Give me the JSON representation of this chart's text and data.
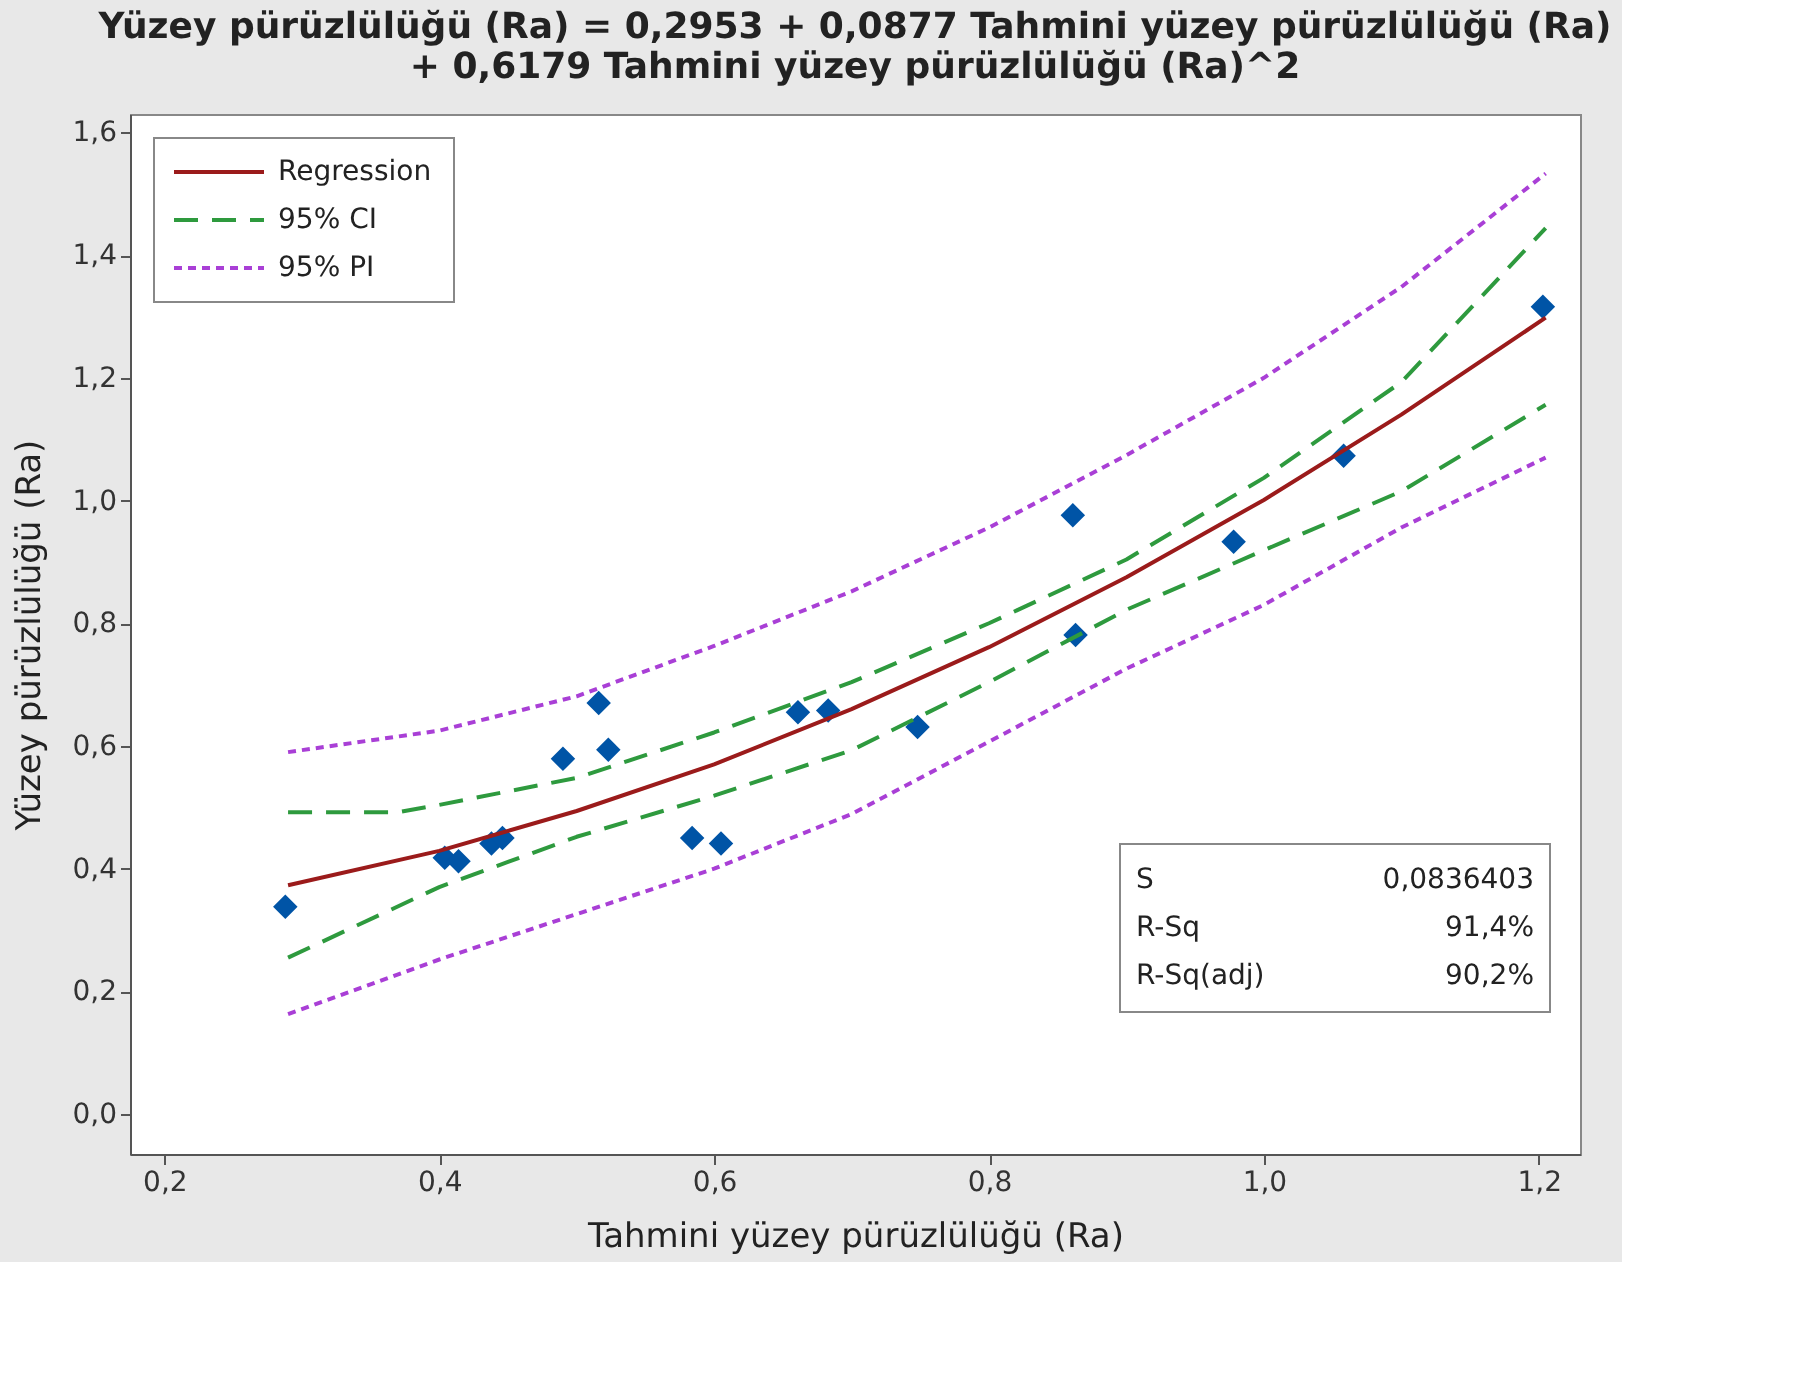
{
  "chart_data": {
    "type": "scatter",
    "title": "Yüzey pürüzlülüğü (Ra) = 0,2953 + 0,0877 Tahmini yüzey pürüzlülüğü (Ra)\n + 0,6179 Tahmini yüzey pürüzlülüğü (Ra)^2",
    "xlabel": "Tahmini yüzey pürüzlülüğü (Ra)",
    "ylabel": "Yüzey pürüzlülüğü (Ra)",
    "xlim": [
      0.175,
      1.23
    ],
    "ylim": [
      -0.065,
      1.63
    ],
    "xticks": [
      {
        "value": 0.2,
        "label": "0,2"
      },
      {
        "value": 0.4,
        "label": "0,4"
      },
      {
        "value": 0.6,
        "label": "0,6"
      },
      {
        "value": 0.8,
        "label": "0,8"
      },
      {
        "value": 1.0,
        "label": "1,0"
      },
      {
        "value": 1.2,
        "label": "1,2"
      }
    ],
    "yticks": [
      {
        "value": 0.0,
        "label": "0,0"
      },
      {
        "value": 0.2,
        "label": "0,2"
      },
      {
        "value": 0.4,
        "label": "0,4"
      },
      {
        "value": 0.6,
        "label": "0,6"
      },
      {
        "value": 0.8,
        "label": "0,8"
      },
      {
        "value": 1.0,
        "label": "1,0"
      },
      {
        "value": 1.2,
        "label": "1,2"
      },
      {
        "value": 1.4,
        "label": "1,4"
      },
      {
        "value": 1.6,
        "label": "1,6"
      }
    ],
    "grid": false,
    "legend": "top left",
    "annotations": [
      "S",
      "0,0836403",
      "R-Sq",
      "91,4%",
      "R-Sq(adj)",
      "90,2%"
    ],
    "series": [
      {
        "marker": "diamond",
        "color": "#0054a6",
        "x": [
          0.288,
          0.404,
          0.414,
          0.438,
          0.446,
          0.49,
          0.516,
          0.523,
          0.584,
          0.605,
          0.661,
          0.683,
          0.748,
          0.861,
          0.863,
          0.978,
          1.058,
          1.203
        ],
        "values": [
          0.338,
          0.418,
          0.412,
          0.441,
          0.45,
          0.579,
          0.67,
          0.594,
          0.45,
          0.441,
          0.655,
          0.658,
          0.631,
          0.976,
          0.781,
          0.933,
          1.073,
          1.316
        ]
      },
      {
        "type": "line",
        "name": "Regression",
        "color": "#9b1b1b",
        "line_style": "solid",
        "x": [
          0.29,
          0.4,
          0.5,
          0.6,
          0.7,
          0.8,
          0.9,
          1.0,
          1.1,
          1.205
        ],
        "values": [
          0.373,
          0.429,
          0.494,
          0.57,
          0.66,
          0.761,
          0.875,
          1.001,
          1.14,
          1.298
        ]
      },
      {
        "type": "line",
        "name": "95% CI",
        "color": "#2e9a3e",
        "line_style": "dashed",
        "x": [
          0.29,
          0.37,
          0.4,
          0.5,
          0.6,
          0.7,
          0.8,
          0.9,
          1.0,
          1.1,
          1.205
        ],
        "values": [
          0.492,
          0.492,
          0.504,
          0.548,
          0.622,
          0.704,
          0.8,
          0.904,
          1.037,
          1.193,
          1.444
        ]
      },
      {
        "type": "line",
        "color": "#2e9a3e",
        "line_style": "dashed",
        "x": [
          0.29,
          0.4,
          0.5,
          0.6,
          0.7,
          0.8,
          0.9,
          1.0,
          1.1,
          1.205
        ],
        "values": [
          0.255,
          0.37,
          0.452,
          0.519,
          0.593,
          0.704,
          0.822,
          0.919,
          1.015,
          1.156
        ]
      },
      {
        "type": "line",
        "name": "95% PI",
        "color": "#a93fd6",
        "line_style": "dotted",
        "x": [
          0.29,
          0.4,
          0.5,
          0.6,
          0.7,
          0.8,
          0.9,
          1.0,
          1.1,
          1.205
        ],
        "values": [
          0.59,
          0.625,
          0.681,
          0.763,
          0.852,
          0.956,
          1.074,
          1.2,
          1.348,
          1.533
        ]
      },
      {
        "type": "line",
        "color": "#a93fd6",
        "line_style": "dotted",
        "x": [
          0.29,
          0.4,
          0.5,
          0.6,
          0.7,
          0.8,
          0.9,
          1.0,
          1.1,
          1.205
        ],
        "values": [
          0.163,
          0.252,
          0.326,
          0.4,
          0.489,
          0.607,
          0.726,
          0.83,
          0.956,
          1.07
        ]
      }
    ]
  }
}
